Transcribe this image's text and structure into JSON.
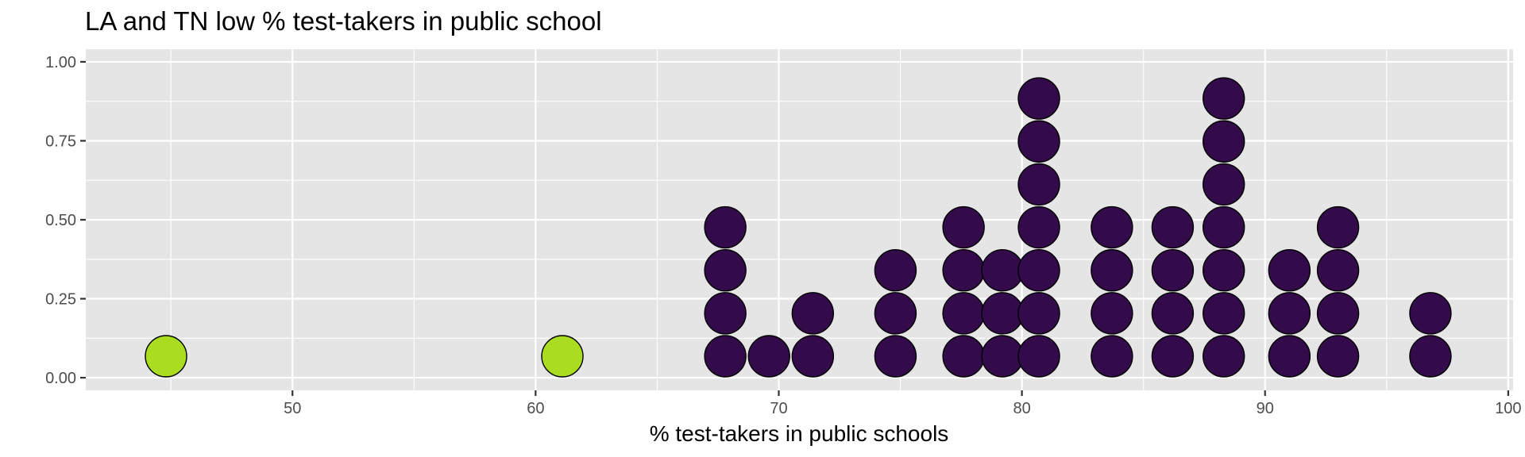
{
  "chart_data": {
    "type": "scatter",
    "subtype": "dotplot",
    "title": "LA and TN low % test-takers in public school",
    "xlabel": "% test-takers in public schools",
    "ylabel": "",
    "xlim": [
      41.5,
      100.2
    ],
    "ylim": [
      -0.04,
      1.04
    ],
    "x_ticks": [
      50,
      60,
      70,
      80,
      90,
      100
    ],
    "x_minor_ticks": [
      45,
      55,
      65,
      75,
      85,
      95
    ],
    "y_ticks": [
      0.0,
      0.25,
      0.5,
      0.75,
      1.0
    ],
    "y_tick_labels": [
      "0.00",
      "0.25",
      "0.50",
      "0.75",
      "1.00"
    ],
    "y_minor_ticks": [
      0.125,
      0.375,
      0.625,
      0.875
    ],
    "grid": true,
    "legend": "none",
    "colors": {
      "highlight": "#aadc1f",
      "other": "#330a4a",
      "panel": "#e5e5e5"
    },
    "stack_y_values": [
      0.068,
      0.204,
      0.34,
      0.476,
      0.612,
      0.748,
      0.884
    ],
    "stacks": [
      {
        "x": 44.8,
        "count": 1,
        "group": "highlight"
      },
      {
        "x": 61.1,
        "count": 1,
        "group": "highlight"
      },
      {
        "x": 67.8,
        "count": 4,
        "group": "other"
      },
      {
        "x": 69.6,
        "count": 1,
        "group": "other"
      },
      {
        "x": 71.4,
        "count": 2,
        "group": "other"
      },
      {
        "x": 74.8,
        "count": 3,
        "group": "other"
      },
      {
        "x": 77.6,
        "count": 4,
        "group": "other"
      },
      {
        "x": 79.2,
        "count": 3,
        "group": "other"
      },
      {
        "x": 80.7,
        "count": 7,
        "group": "other"
      },
      {
        "x": 83.7,
        "count": 4,
        "group": "other"
      },
      {
        "x": 86.2,
        "count": 4,
        "group": "other"
      },
      {
        "x": 88.3,
        "count": 7,
        "group": "other"
      },
      {
        "x": 91.0,
        "count": 3,
        "group": "other"
      },
      {
        "x": 93.0,
        "count": 4,
        "group": "other"
      },
      {
        "x": 96.8,
        "count": 2,
        "group": "other"
      }
    ]
  }
}
